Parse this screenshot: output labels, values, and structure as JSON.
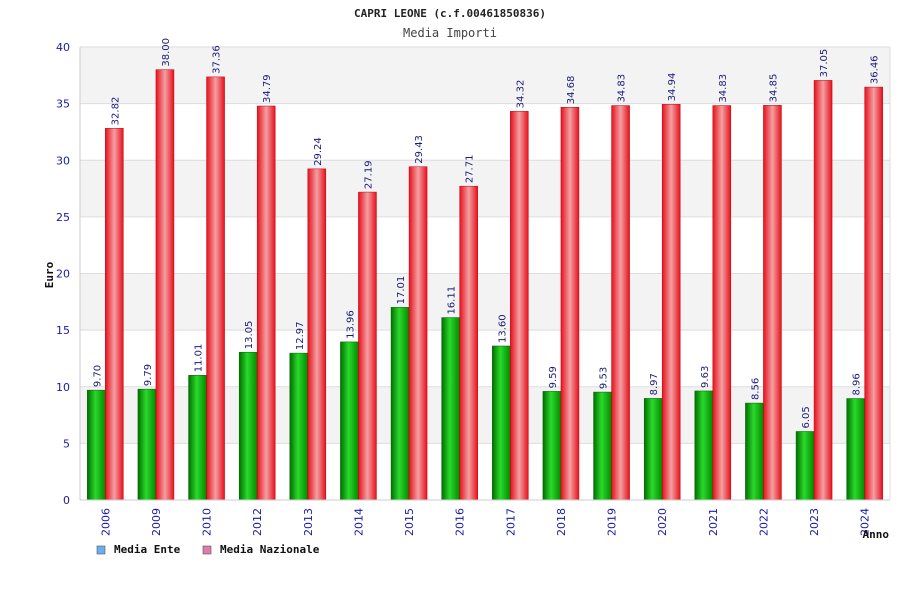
{
  "chart_data": {
    "type": "bar",
    "title": "CAPRI LEONE (c.f.00461850836)",
    "subtitle": "Media Importi",
    "xlabel": "Anno",
    "ylabel": "Euro",
    "ylim": [
      0,
      40
    ],
    "yticks": [
      0,
      5,
      10,
      15,
      20,
      25,
      30,
      35,
      40
    ],
    "grid": "horizontal bands",
    "legend_position": "bottom-left",
    "categories": [
      "2006",
      "2009",
      "2010",
      "2012",
      "2013",
      "2014",
      "2015",
      "2016",
      "2017",
      "2018",
      "2019",
      "2020",
      "2021",
      "2022",
      "2023",
      "2024"
    ],
    "series": [
      {
        "name": "Media Ente",
        "color": "#00aa00",
        "legend_color": "#6aaef0",
        "values": [
          9.7,
          9.79,
          11.01,
          13.05,
          12.97,
          13.96,
          17.01,
          16.11,
          13.6,
          9.59,
          9.53,
          8.97,
          9.63,
          8.56,
          6.05,
          8.96
        ],
        "labels": [
          "9.70",
          "9.79",
          "11.01",
          "13.05",
          "12.97",
          "13.96",
          "17.01",
          "16.11",
          "13.60",
          "9.59",
          "9.53",
          "8.97",
          "9.63",
          "8.56",
          "6.05",
          "8.96"
        ]
      },
      {
        "name": "Media Nazionale",
        "color": "#e8101a",
        "legend_color": "#e07aa8",
        "values": [
          32.82,
          38.0,
          37.36,
          34.79,
          29.24,
          27.19,
          29.43,
          27.71,
          34.32,
          34.68,
          34.83,
          34.94,
          34.83,
          34.85,
          37.05,
          36.46
        ],
        "labels": [
          "32.82",
          "38.00",
          "37.36",
          "34.79",
          "29.24",
          "27.19",
          "29.43",
          "27.71",
          "34.32",
          "34.68",
          "34.83",
          "34.94",
          "34.83",
          "34.85",
          "37.05",
          "36.46"
        ]
      }
    ]
  }
}
